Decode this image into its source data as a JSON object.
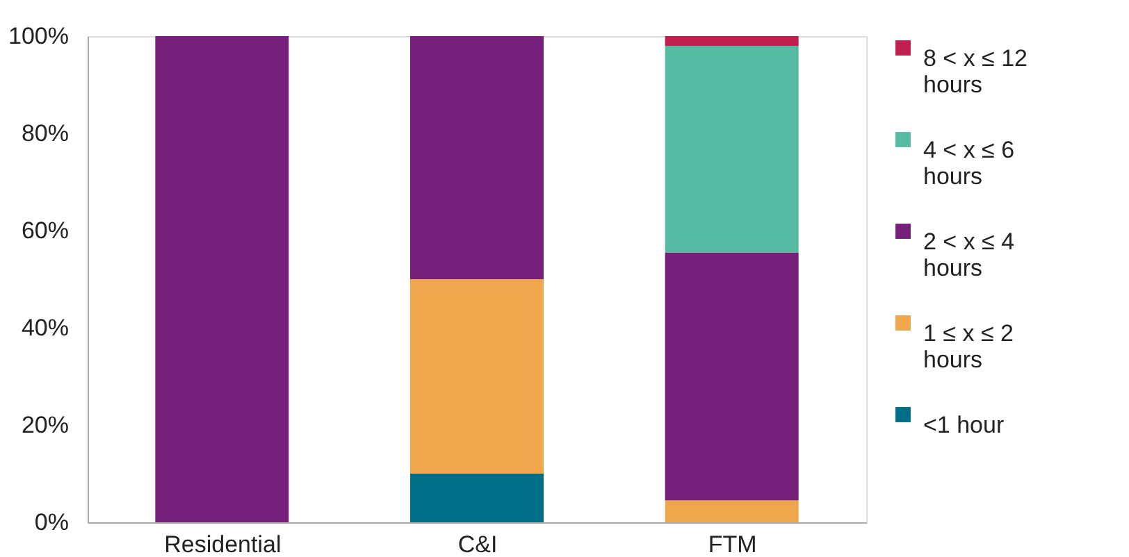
{
  "chart_data": {
    "type": "bar",
    "stacked": true,
    "categories": [
      "Residential",
      "C&I",
      "FTM"
    ],
    "series": [
      {
        "name": "<1 hour",
        "color": "#006f87",
        "values": [
          null,
          10,
          null
        ]
      },
      {
        "name": "1 ≤ x ≤ 2 hours",
        "color": "#f0a64c",
        "values": [
          null,
          40,
          4.5
        ]
      },
      {
        "name": "2 < x ≤ 4 hours",
        "color": "#76207c",
        "values": [
          100,
          50,
          51
        ]
      },
      {
        "name": "4 < x ≤ 6 hours",
        "color": "#56bba3",
        "values": [
          null,
          null,
          42.5
        ]
      },
      {
        "name": "8 < x ≤ 12 hours",
        "color": "#c0204f",
        "values": [
          null,
          null,
          2
        ]
      }
    ],
    "ylim": [
      0,
      100
    ],
    "yticks": [
      {
        "value": 0,
        "label": "0%"
      },
      {
        "value": 20,
        "label": "20%"
      },
      {
        "value": 40,
        "label": "40%"
      },
      {
        "value": 60,
        "label": "60%"
      },
      {
        "value": 80,
        "label": "80%"
      },
      {
        "value": 100,
        "label": "100%"
      }
    ],
    "grid": false,
    "legend": "right"
  }
}
